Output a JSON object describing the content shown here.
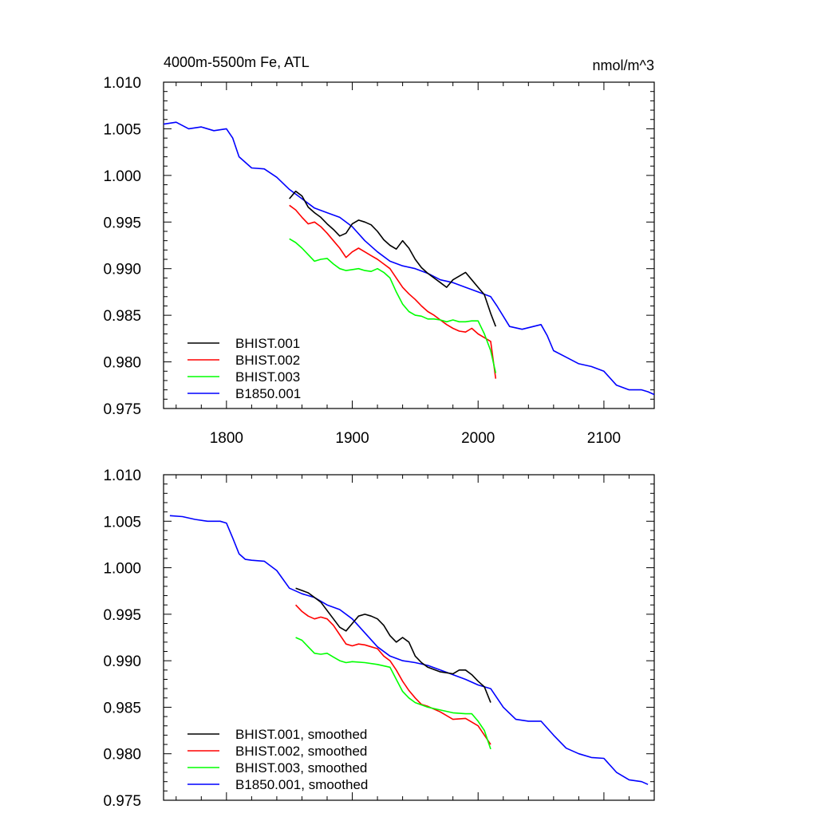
{
  "chart_data": [
    {
      "type": "line",
      "title": "4000m-5500m Fe, ATL",
      "units": "nmol/m^3",
      "xlim": [
        1750,
        2140
      ],
      "ylim": [
        0.975,
        1.01
      ],
      "xticks": [
        1800,
        1900,
        2000,
        2100
      ],
      "xtick_labels": [
        "1800",
        "1900",
        "2000",
        "2100"
      ],
      "yticks": [
        0.975,
        0.98,
        0.985,
        0.99,
        0.995,
        1.0,
        1.005,
        1.01
      ],
      "ytick_labels": [
        "0.975",
        "0.980",
        "0.985",
        "0.990",
        "0.995",
        "1.000",
        "1.005",
        "1.010"
      ],
      "legend_position": "bottom-left",
      "series": [
        {
          "name": "BHIST.001",
          "color": "#000000",
          "x": [
            1850,
            1855,
            1860,
            1865,
            1870,
            1875,
            1880,
            1885,
            1890,
            1895,
            1900,
            1905,
            1910,
            1915,
            1920,
            1925,
            1930,
            1935,
            1940,
            1945,
            1950,
            1955,
            1960,
            1965,
            1970,
            1975,
            1980,
            1985,
            1990,
            1995,
            2000,
            2005,
            2010,
            2014
          ],
          "values": [
            0.9975,
            0.9983,
            0.9978,
            0.9966,
            0.996,
            0.9955,
            0.9948,
            0.9942,
            0.9935,
            0.9938,
            0.9948,
            0.9952,
            0.995,
            0.9947,
            0.994,
            0.9931,
            0.9925,
            0.9921,
            0.993,
            0.9922,
            0.991,
            0.9901,
            0.9895,
            0.989,
            0.9885,
            0.988,
            0.9888,
            0.9892,
            0.9896,
            0.9888,
            0.988,
            0.9872,
            0.9852,
            0.9838
          ]
        },
        {
          "name": "BHIST.002",
          "color": "#ff0000",
          "x": [
            1850,
            1855,
            1860,
            1865,
            1870,
            1875,
            1880,
            1885,
            1890,
            1895,
            1900,
            1905,
            1910,
            1915,
            1920,
            1925,
            1930,
            1935,
            1940,
            1945,
            1950,
            1955,
            1960,
            1965,
            1970,
            1975,
            1980,
            1985,
            1990,
            1995,
            2000,
            2005,
            2010,
            2014
          ],
          "values": [
            0.9968,
            0.9963,
            0.9955,
            0.9948,
            0.995,
            0.9945,
            0.9938,
            0.993,
            0.9922,
            0.9912,
            0.9918,
            0.9922,
            0.9918,
            0.9914,
            0.991,
            0.9905,
            0.99,
            0.989,
            0.988,
            0.9873,
            0.9867,
            0.986,
            0.9854,
            0.985,
            0.9845,
            0.984,
            0.9836,
            0.9833,
            0.9832,
            0.9836,
            0.983,
            0.9826,
            0.9822,
            0.9782
          ]
        },
        {
          "name": "BHIST.003",
          "color": "#00ff00",
          "x": [
            1850,
            1855,
            1860,
            1865,
            1870,
            1875,
            1880,
            1885,
            1890,
            1895,
            1900,
            1905,
            1910,
            1915,
            1920,
            1925,
            1930,
            1935,
            1940,
            1945,
            1950,
            1955,
            1960,
            1965,
            1970,
            1975,
            1980,
            1985,
            1990,
            1995,
            2000,
            2005,
            2010,
            2014
          ],
          "values": [
            0.9932,
            0.9928,
            0.9922,
            0.9915,
            0.9908,
            0.991,
            0.9911,
            0.9905,
            0.99,
            0.9898,
            0.9899,
            0.99,
            0.9898,
            0.9897,
            0.99,
            0.9896,
            0.989,
            0.9875,
            0.9862,
            0.9854,
            0.985,
            0.9849,
            0.9846,
            0.9846,
            0.9845,
            0.9843,
            0.9845,
            0.9843,
            0.9843,
            0.9844,
            0.9844,
            0.983,
            0.9812,
            0.9788
          ]
        },
        {
          "name": "B1850.001",
          "color": "#0000ff",
          "x": [
            1750,
            1760,
            1770,
            1780,
            1790,
            1800,
            1805,
            1810,
            1820,
            1830,
            1840,
            1850,
            1860,
            1870,
            1880,
            1890,
            1900,
            1910,
            1920,
            1930,
            1940,
            1950,
            1960,
            1970,
            1980,
            1990,
            2000,
            2010,
            2015,
            2025,
            2035,
            2050,
            2055,
            2060,
            2070,
            2080,
            2090,
            2100,
            2110,
            2120,
            2130,
            2135,
            2140
          ],
          "values": [
            1.0055,
            1.0057,
            1.005,
            1.0052,
            1.0048,
            1.005,
            1.004,
            1.002,
            1.0008,
            1.0007,
            0.9998,
            0.9985,
            0.9975,
            0.9965,
            0.996,
            0.9955,
            0.9945,
            0.993,
            0.9918,
            0.9908,
            0.9903,
            0.99,
            0.9895,
            0.9888,
            0.9885,
            0.988,
            0.9875,
            0.987,
            0.986,
            0.9838,
            0.9835,
            0.984,
            0.9828,
            0.9812,
            0.9805,
            0.9798,
            0.9795,
            0.979,
            0.9775,
            0.977,
            0.977,
            0.9768,
            0.9765
          ]
        }
      ]
    },
    {
      "type": "line",
      "title": "",
      "xlim": [
        1750,
        2140
      ],
      "ylim": [
        0.975,
        1.01
      ],
      "xticks": [
        1800,
        1900,
        2000,
        2100
      ],
      "yticks": [
        0.975,
        0.98,
        0.985,
        0.99,
        0.995,
        1.0,
        1.005,
        1.01
      ],
      "ytick_labels": [
        "0.975",
        "0.980",
        "0.985",
        "0.990",
        "0.995",
        "1.000",
        "1.005",
        "1.010"
      ],
      "legend_position": "bottom-left",
      "series": [
        {
          "name": "BHIST.001, smoothed",
          "color": "#000000",
          "x": [
            1855,
            1865,
            1875,
            1885,
            1890,
            1895,
            1900,
            1905,
            1910,
            1915,
            1920,
            1925,
            1930,
            1935,
            1940,
            1945,
            1950,
            1955,
            1960,
            1970,
            1980,
            1985,
            1990,
            1995,
            2000,
            2005,
            2010
          ],
          "values": [
            0.9978,
            0.9973,
            0.9963,
            0.9945,
            0.9936,
            0.9932,
            0.994,
            0.9948,
            0.995,
            0.9948,
            0.9945,
            0.9938,
            0.9927,
            0.992,
            0.9925,
            0.992,
            0.9905,
            0.9898,
            0.9893,
            0.9888,
            0.9886,
            0.989,
            0.989,
            0.9885,
            0.9878,
            0.9872,
            0.9855
          ]
        },
        {
          "name": "BHIST.002, smoothed",
          "color": "#ff0000",
          "x": [
            1855,
            1860,
            1865,
            1870,
            1875,
            1880,
            1885,
            1890,
            1895,
            1900,
            1905,
            1910,
            1915,
            1920,
            1925,
            1930,
            1935,
            1940,
            1945,
            1950,
            1955,
            1960,
            1970,
            1980,
            1990,
            2000,
            2010
          ],
          "values": [
            0.996,
            0.9953,
            0.9948,
            0.9945,
            0.9947,
            0.9945,
            0.9938,
            0.9928,
            0.9918,
            0.9916,
            0.9918,
            0.9917,
            0.9915,
            0.9913,
            0.9905,
            0.99,
            0.989,
            0.9878,
            0.9868,
            0.986,
            0.9853,
            0.9851,
            0.9845,
            0.9837,
            0.9838,
            0.983,
            0.981
          ]
        },
        {
          "name": "BHIST.003, smoothed",
          "color": "#00ff00",
          "x": [
            1855,
            1860,
            1865,
            1870,
            1875,
            1880,
            1885,
            1890,
            1895,
            1900,
            1910,
            1920,
            1930,
            1935,
            1940,
            1945,
            1950,
            1960,
            1970,
            1980,
            1990,
            1995,
            2000,
            2005,
            2010
          ],
          "values": [
            0.9925,
            0.9922,
            0.9915,
            0.9908,
            0.9907,
            0.9908,
            0.9904,
            0.99,
            0.9898,
            0.9899,
            0.9898,
            0.9896,
            0.9893,
            0.988,
            0.9867,
            0.986,
            0.9855,
            0.985,
            0.9847,
            0.9844,
            0.9843,
            0.9843,
            0.9835,
            0.9825,
            0.9805
          ]
        },
        {
          "name": "B1850.001, smoothed",
          "color": "#0000ff",
          "x": [
            1755,
            1765,
            1775,
            1785,
            1795,
            1800,
            1805,
            1810,
            1815,
            1820,
            1830,
            1840,
            1850,
            1860,
            1870,
            1880,
            1890,
            1900,
            1910,
            1920,
            1930,
            1940,
            1950,
            1960,
            1970,
            1980,
            1990,
            2000,
            2010,
            2020,
            2030,
            2040,
            2050,
            2060,
            2070,
            2080,
            2090,
            2100,
            2110,
            2120,
            2130,
            2135
          ],
          "values": [
            1.0056,
            1.0055,
            1.0052,
            1.005,
            1.005,
            1.0048,
            1.0032,
            1.0015,
            1.0009,
            1.0008,
            1.0007,
            0.9997,
            0.9978,
            0.9972,
            0.9968,
            0.996,
            0.9955,
            0.9945,
            0.993,
            0.9915,
            0.9905,
            0.99,
            0.9898,
            0.9895,
            0.989,
            0.9885,
            0.988,
            0.9874,
            0.987,
            0.985,
            0.9837,
            0.9835,
            0.9835,
            0.982,
            0.9806,
            0.98,
            0.9796,
            0.9795,
            0.978,
            0.9772,
            0.977,
            0.9767
          ]
        }
      ]
    }
  ]
}
